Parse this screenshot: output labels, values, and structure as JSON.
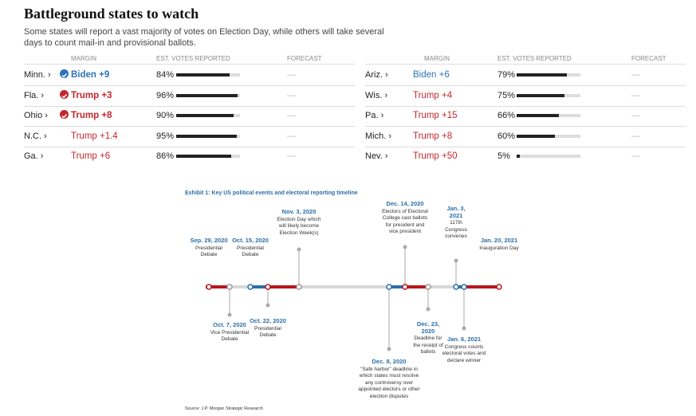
{
  "header": {
    "title": "Battleground states to watch",
    "subtitle": "Some states will report a vast majority of votes on Election Day, while others will take several days to count mail-in and provisional ballots."
  },
  "table": {
    "columns": [
      "MARGIN",
      "EST. VOTES REPORTED",
      "FORECAST"
    ],
    "rows": [
      {
        "state": "Minn.",
        "margin": "Biden +9",
        "color": "#2a73b8",
        "called": true,
        "reported": {
          "value": 84,
          "label": "84%"
        },
        "forecast": "—"
      },
      {
        "state": "Fla.",
        "margin": "Trump +3",
        "color": "#c5262c",
        "called": true,
        "reported": {
          "value": 96,
          "label": "96%"
        },
        "forecast": "—"
      },
      {
        "state": "Ohio",
        "margin": "Trump +8",
        "color": "#c5262c",
        "called": true,
        "reported": {
          "value": 90,
          "label": "90%"
        },
        "forecast": "—"
      },
      {
        "state": "N.C.",
        "margin": "Trump +1.4",
        "color": "#c5262c",
        "called": false,
        "reported": {
          "value": 95,
          "label": "95%"
        },
        "forecast": "—"
      },
      {
        "state": "Ga.",
        "margin": "Trump +6",
        "color": "#c5262c",
        "called": false,
        "reported": {
          "value": 86,
          "label": "86%"
        },
        "forecast": "—"
      },
      {
        "state": "Ariz.",
        "margin": "Biden +6",
        "color": "#2a73b8",
        "called": false,
        "reported": {
          "value": 79,
          "label": "79%"
        },
        "forecast": "—"
      },
      {
        "state": "Wis.",
        "margin": "Trump +4",
        "color": "#c5262c",
        "called": false,
        "reported": {
          "value": 75,
          "label": "75%"
        },
        "forecast": "—"
      },
      {
        "state": "Pa.",
        "margin": "Trump +15",
        "color": "#c5262c",
        "called": false,
        "reported": {
          "value": 66,
          "label": "66%"
        },
        "forecast": "—"
      },
      {
        "state": "Mich.",
        "margin": "Trump +8",
        "color": "#c5262c",
        "called": false,
        "reported": {
          "value": 60,
          "label": "60%"
        },
        "forecast": "—"
      },
      {
        "state": "Nev.",
        "margin": "Trump +50",
        "color": "#c5262c",
        "called": false,
        "reported": {
          "value": 5,
          "label": "5%"
        },
        "forecast": "—"
      }
    ]
  },
  "timeline": {
    "title": "Exhibit 1: Key US political events and electoral reporting timeline",
    "events": [
      {
        "date": "Sep. 29, 2020",
        "text": "Presidential Debate"
      },
      {
        "date": "Oct. 7, 2020",
        "text": "Vice Presidential Debate"
      },
      {
        "date": "Oct. 15, 2020",
        "text": "Presidential Debate"
      },
      {
        "date": "Oct. 22, 2020",
        "text": "Presidential Debate"
      },
      {
        "date": "Nov. 3, 2020",
        "text": "Election Day which will likely become Election Week(s)"
      },
      {
        "date": "Dec. 8, 2020",
        "text": "\"Safe harbor\" deadline in which states must resolve any controversy over appointed electors or other election disputes"
      },
      {
        "date": "Dec. 14, 2020",
        "text": "Electors of Electoral College cast ballots for president and vice president"
      },
      {
        "date": "Dec. 23, 2020",
        "text": "Deadline for the receipt of ballots"
      },
      {
        "date": "Jan. 3, 2021",
        "text": "117th Congress convenes"
      },
      {
        "date": "Jan. 6, 2021",
        "text": "Congress counts electoral votes and declare winner"
      },
      {
        "date": "Jan. 20, 2021",
        "text": "Inauguration Day"
      }
    ],
    "source": "Source: J.P. Morgan Strategic Research"
  }
}
